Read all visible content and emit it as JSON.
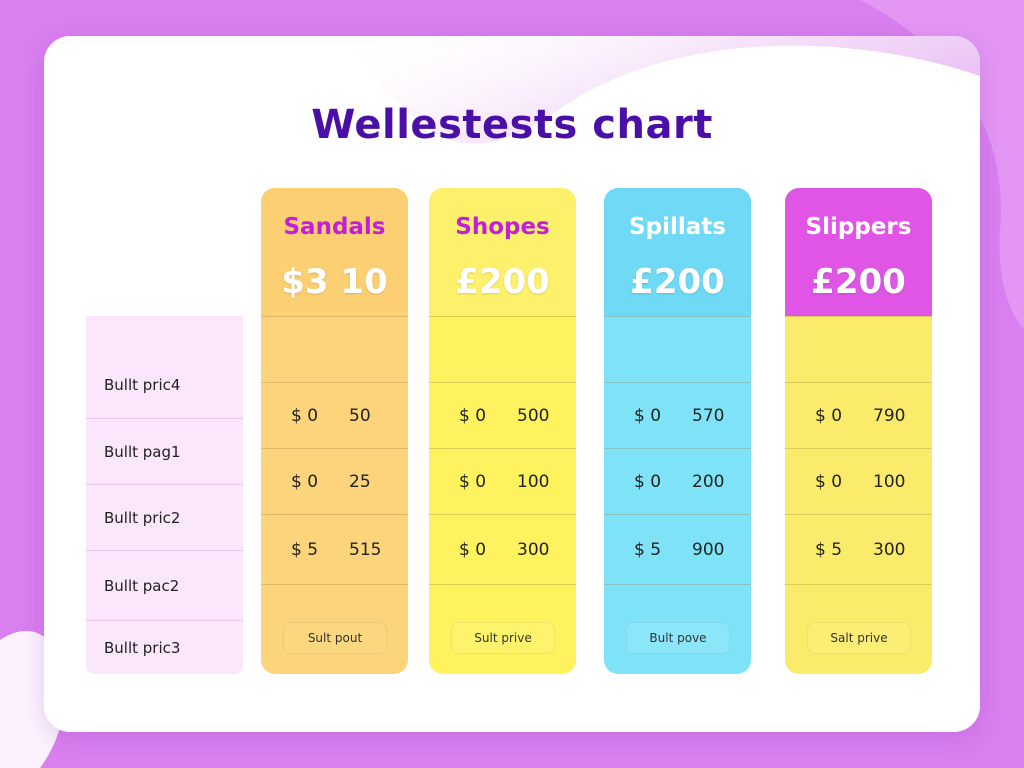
{
  "title": "Wellestests chart",
  "colors": {
    "background": "#d97ff0",
    "title": "#4a0fa6",
    "label_column": "#fbe7fb"
  },
  "row_labels": [
    "Bullt pric4",
    "Bullt pag1",
    "Bullt pric2",
    "Bullt pac2",
    "Bullt pric3"
  ],
  "plans": [
    {
      "name": "Sandals",
      "price": "$3 10",
      "name_color": "#c21fd6",
      "head_color": "#fbcf72",
      "body_color": "#fbd47c",
      "button_color": "#fbd880",
      "rows": [
        [
          "",
          ""
        ],
        [
          "$ 0",
          "50"
        ],
        [
          "$ 0",
          "25"
        ],
        [
          "$ 5",
          "515"
        ]
      ],
      "button": "Sult pout"
    },
    {
      "name": "Shopes",
      "price": "£200",
      "name_color": "#c21fd6",
      "head_color": "#fdf06a",
      "body_color": "#fef25e",
      "button_color": "#fef46c",
      "rows": [
        [
          "",
          ""
        ],
        [
          "$ 0",
          "500"
        ],
        [
          "$ 0",
          "100"
        ],
        [
          "$ 0",
          "300"
        ]
      ],
      "button": "Sult prive"
    },
    {
      "name": "Spillats",
      "price": "£200",
      "name_color": "#ffffff",
      "head_color": "#6fd9f6",
      "body_color": "#7fe3f7",
      "button_color": "#8ae6f8",
      "rows": [
        [
          "",
          ""
        ],
        [
          "$ 0",
          "570"
        ],
        [
          "$ 0",
          "200"
        ],
        [
          "$ 5",
          "900"
        ]
      ],
      "button": "Bult pove"
    },
    {
      "name": "Slippers",
      "price": "£200",
      "name_color": "#ffffff",
      "head_color": "#e055e6",
      "body_color": "#fbeb6a",
      "button_color": "#fcee74",
      "rows": [
        [
          "",
          ""
        ],
        [
          "$ 0",
          "790"
        ],
        [
          "$ 0",
          "100"
        ],
        [
          "$ 5",
          "300"
        ]
      ],
      "button": "Salt prive"
    }
  ]
}
